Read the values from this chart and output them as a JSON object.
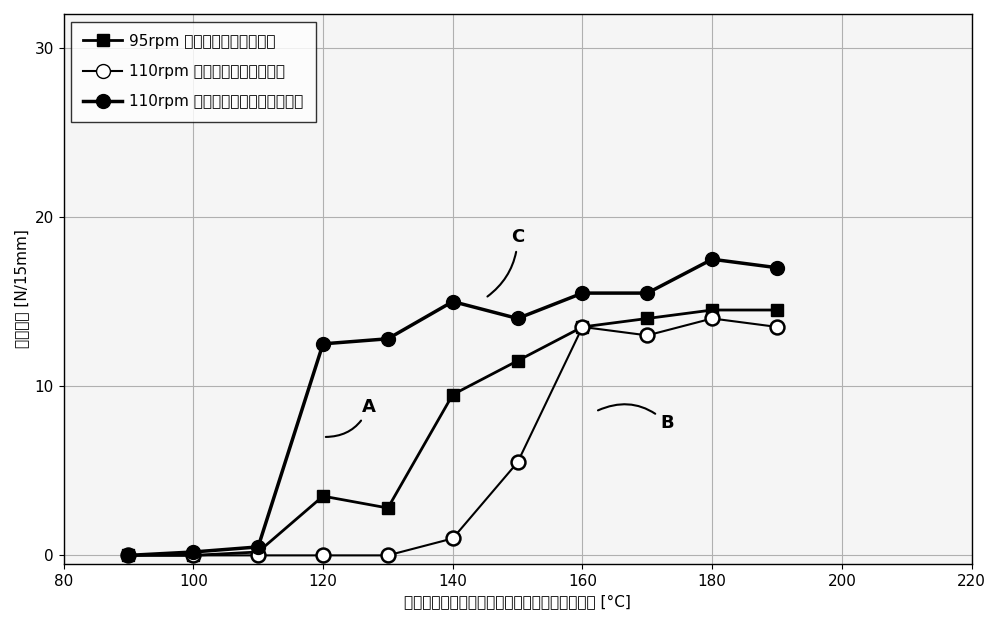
{
  "xlabel": "加热辊中被设定为最高温度的加热辊的设定温度 [°C]",
  "ylabel": "密封强度 [N/15mm]",
  "xlim": [
    80,
    220
  ],
  "ylim": [
    -0.5,
    32
  ],
  "xticks": [
    80,
    100,
    120,
    140,
    160,
    180,
    200,
    220
  ],
  "yticks": [
    0,
    10,
    20,
    30
  ],
  "series": [
    {
      "label": "95rpm （现有的中心封口器）",
      "x": [
        90,
        100,
        110,
        120,
        130,
        140,
        150,
        160,
        170,
        180,
        190
      ],
      "y": [
        0,
        0,
        0.2,
        3.5,
        2.8,
        9.5,
        11.5,
        13.5,
        14.0,
        14.5,
        14.5
      ],
      "color": "#000000",
      "marker": "s",
      "markersize": 8,
      "linewidth": 2,
      "linestyle": "-",
      "marker_filled": true
    },
    {
      "label": "110rpm （现有的中心封口器）",
      "x": [
        90,
        100,
        110,
        120,
        130,
        140,
        150,
        160,
        170,
        180,
        190
      ],
      "y": [
        0,
        0,
        0,
        0,
        0,
        1.0,
        5.5,
        13.5,
        13.0,
        14.0,
        13.5
      ],
      "color": "#000000",
      "marker": "o",
      "markersize": 10,
      "linewidth": 1.5,
      "linestyle": "-",
      "marker_filled": false
    },
    {
      "label": "110rpm （实施方式的中心封口器）",
      "x": [
        90,
        100,
        110,
        120,
        130,
        140,
        150,
        160,
        170,
        180,
        190
      ],
      "y": [
        0,
        0.2,
        0.5,
        12.5,
        12.8,
        15.0,
        14.0,
        15.5,
        15.5,
        17.5,
        17.0
      ],
      "color": "#000000",
      "marker": "o",
      "markersize": 10,
      "linewidth": 2.5,
      "linestyle": "-",
      "marker_filled": true
    }
  ],
  "legend_labels": [
    "95rpm （现有的中心封口器）",
    "110rpm （现有的中心封口器）",
    "110rpm （实施方式的中心封口器）"
  ],
  "background_color": "#ffffff",
  "plot_bg_color": "#f5f5f5",
  "grid_color": "#b0b0b0"
}
